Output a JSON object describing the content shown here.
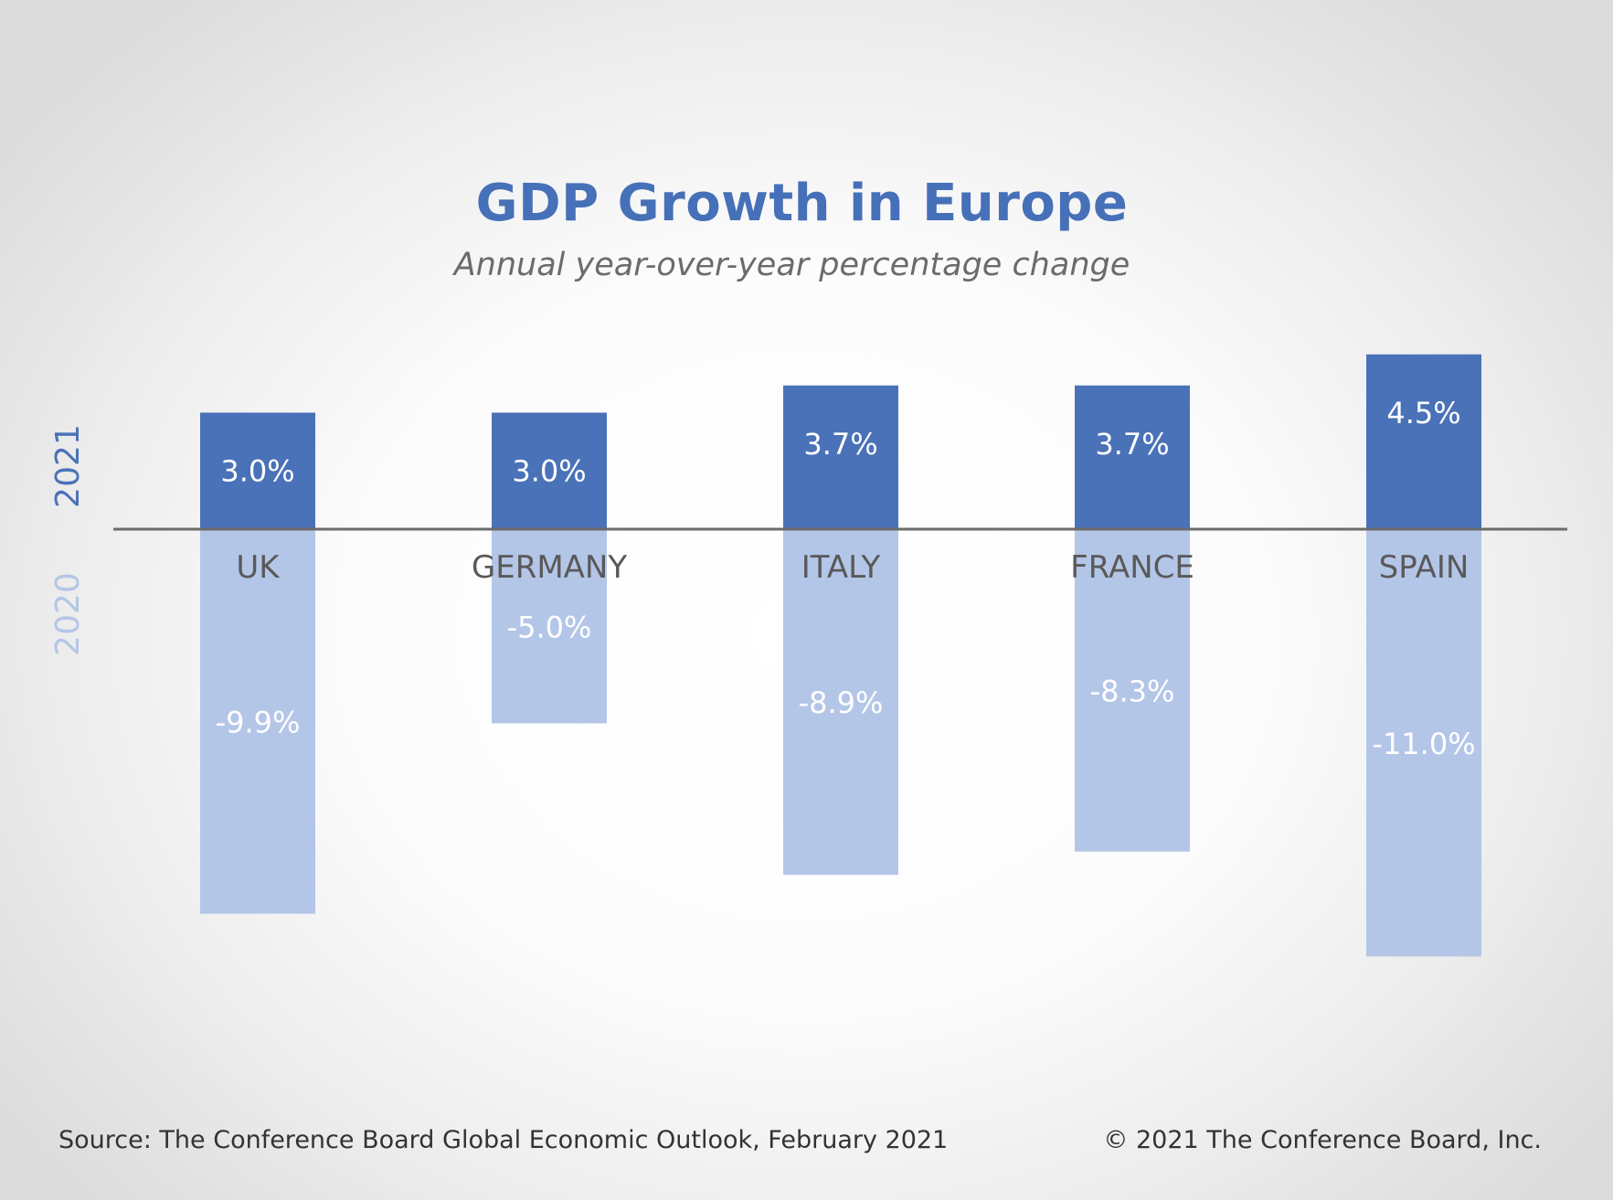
{
  "header": {
    "title": "GDP Growth in Europe",
    "subtitle": "Annual year-over-year percentage change"
  },
  "footer": {
    "source": "Source: The Conference Board Global Economic Outlook, February 2021",
    "copyright": "© 2021 The Conference Board, Inc."
  },
  "colors": {
    "title": "#4670b8",
    "bar_2021": "#4a72b8",
    "bar_2020": "#b4c6e7",
    "axis_line": "#6b6b6b",
    "category_label": "#595959"
  },
  "chart_data": {
    "type": "bar",
    "title": "GDP Growth in Europe",
    "subtitle": "Annual year-over-year percentage change",
    "categories": [
      "UK",
      "GERMANY",
      "ITALY",
      "FRANCE",
      "SPAIN"
    ],
    "series": [
      {
        "name": "2021",
        "values": [
          3.0,
          3.0,
          3.7,
          3.7,
          4.5
        ],
        "labels": [
          "3.0%",
          "3.0%",
          "3.7%",
          "3.7%",
          "4.5%"
        ],
        "color": "#4a72b8"
      },
      {
        "name": "2020",
        "values": [
          -9.9,
          -5.0,
          -8.9,
          -8.3,
          -11.0
        ],
        "labels": [
          "-9.9%",
          "-5.0%",
          "-8.9%",
          "-8.3%",
          "-11.0%"
        ],
        "color": "#b4c6e7"
      }
    ],
    "ylim": [
      -11.0,
      4.5
    ],
    "layout": "stacked-diverging",
    "grid": false,
    "legend": "left-side vertical labels"
  }
}
